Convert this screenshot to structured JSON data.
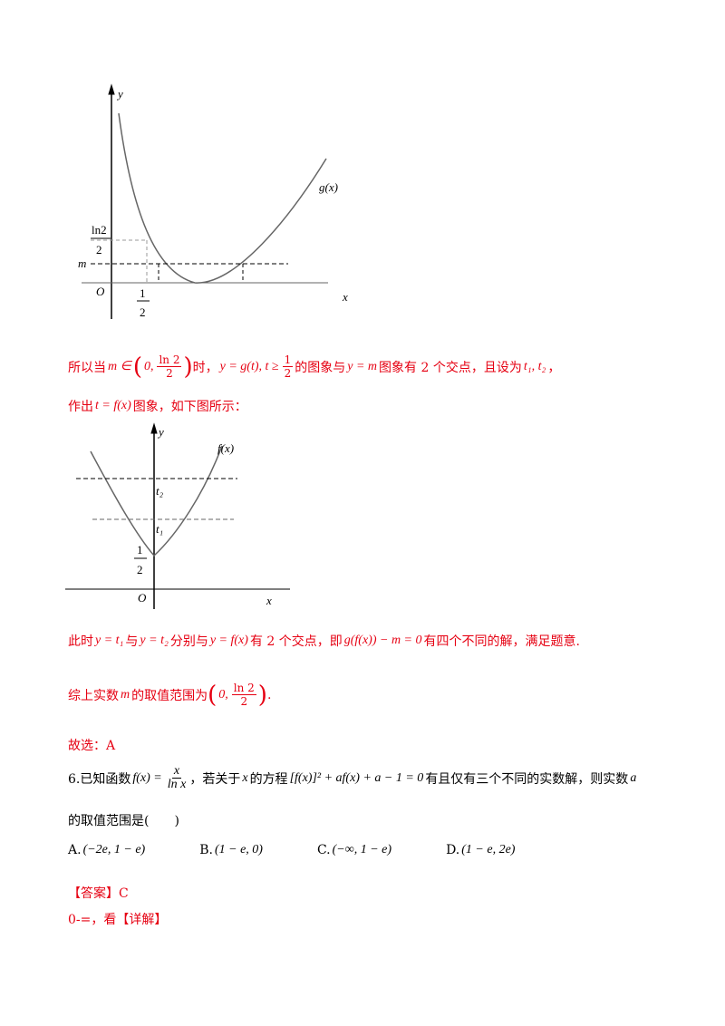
{
  "figure1": {
    "y": "y",
    "x": "x",
    "o": "O",
    "g": "g(x)",
    "ln2": "ln2",
    "two": "2",
    "m": "m",
    "one": "1",
    "half_den": "2"
  },
  "p1": [
    "所以当",
    "m ∈",
    "0,",
    "ln 2",
    "2",
    "时，",
    "y = g(t), t ≥",
    "1",
    "2",
    "的图象与",
    "y = m",
    "图象有 2 个交点，且设为",
    "t₁, t₂",
    "，"
  ],
  "p2": [
    "作出",
    "t = f(x)",
    "图象，如下图所示："
  ],
  "figure2": {
    "y": "y",
    "x": "x",
    "o": "O",
    "f": "f(x)",
    "t2": "t₂",
    "t1": "t₁",
    "one": "1",
    "two": "2"
  },
  "p3": [
    "此时",
    "y = t₁",
    "与",
    "y = t₂",
    "分别与",
    "y = f(x)",
    "有 2 个交点，即",
    "g(f(x)) − m = 0",
    "有四个不同的解，满足题意."
  ],
  "p4": [
    "综上实数",
    "m",
    "的取值范围为",
    "0,",
    "ln 2",
    "2",
    "."
  ],
  "p5": "故选：A",
  "q6": [
    "6.已知函数",
    "f(x) =",
    "x",
    "ln x",
    "，若关于",
    "x",
    "的方程",
    "[f(x)]² + af(x) + a − 1 = 0",
    "有且仅有三个不同的实数解，则实数",
    "a"
  ],
  "q6_line2": "的取值范围是(　　)",
  "options": [
    [
      "A.",
      "(−2e, 1 − e)"
    ],
    [
      "B.",
      "(1 − e, 0)"
    ],
    [
      "C.",
      "(−∞, 1 − e)"
    ],
    [
      "D.",
      "(1 − e, 2e)"
    ]
  ],
  "answer": "【答案】C",
  "last": "0-=，看【详解】"
}
